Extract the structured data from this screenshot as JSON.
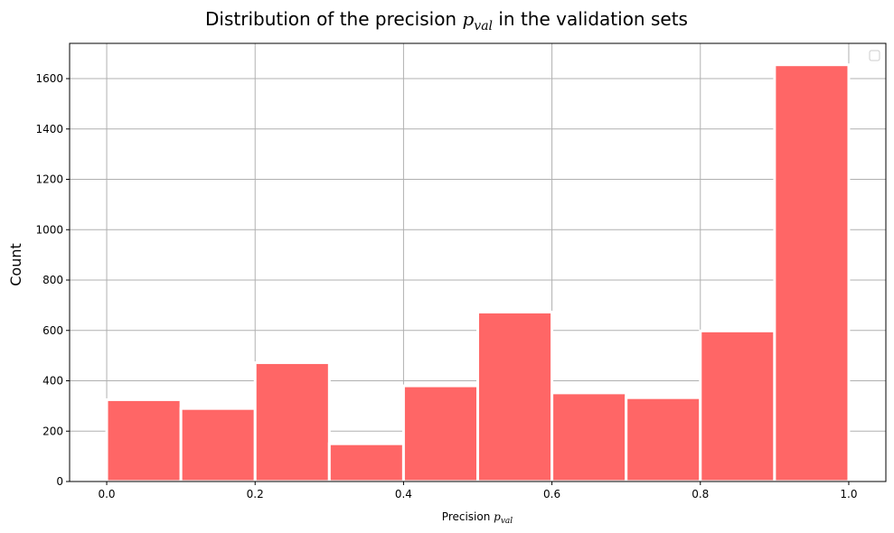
{
  "chart_data": {
    "type": "bar",
    "title_prefix": "Distribution of the precision ",
    "title_symbol": "p",
    "title_subscript": "val",
    "title_suffix": " in the validation sets",
    "xlabel_prefix": "Precision ",
    "xlabel_symbol": "p",
    "xlabel_subscript": "val",
    "ylabel": "Count",
    "xlim": [
      -0.05,
      1.05
    ],
    "ylim": [
      0,
      1740
    ],
    "x_ticks": [
      0.0,
      0.2,
      0.4,
      0.6,
      0.8,
      1.0
    ],
    "x_tick_labels": [
      "0.0",
      "0.2",
      "0.4",
      "0.6",
      "0.8",
      "1.0"
    ],
    "y_ticks": [
      0,
      200,
      400,
      600,
      800,
      1000,
      1200,
      1400,
      1600
    ],
    "y_tick_labels": [
      "0",
      "200",
      "400",
      "600",
      "800",
      "1000",
      "1200",
      "1400",
      "1600"
    ],
    "bins": [
      {
        "start": 0.0,
        "end": 0.1,
        "value": 325
      },
      {
        "start": 0.1,
        "end": 0.2,
        "value": 290
      },
      {
        "start": 0.2,
        "end": 0.3,
        "value": 472
      },
      {
        "start": 0.3,
        "end": 0.4,
        "value": 150
      },
      {
        "start": 0.4,
        "end": 0.5,
        "value": 380
      },
      {
        "start": 0.5,
        "end": 0.6,
        "value": 673
      },
      {
        "start": 0.6,
        "end": 0.7,
        "value": 352
      },
      {
        "start": 0.7,
        "end": 0.8,
        "value": 333
      },
      {
        "start": 0.8,
        "end": 0.9,
        "value": 598
      },
      {
        "start": 0.9,
        "end": 1.0,
        "value": 1655
      }
    ],
    "bar_color": "#ff6666",
    "grid": true,
    "legend": "top-right"
  }
}
